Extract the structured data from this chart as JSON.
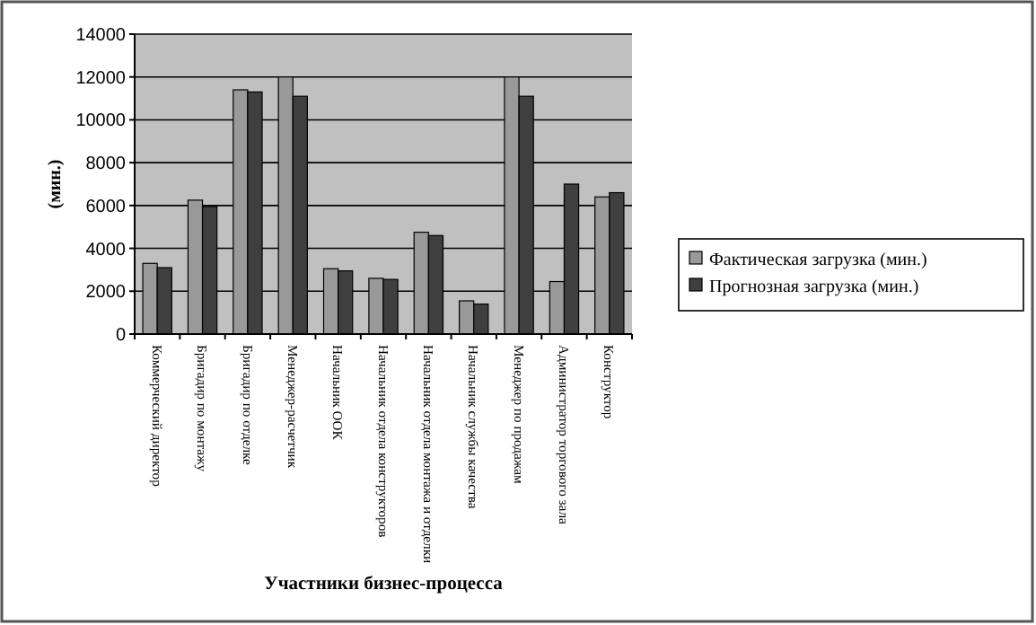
{
  "chart_data": {
    "type": "bar",
    "xlabel": "Участники бизнес-процесса",
    "ylabel": "(мин.)",
    "categories": [
      "Коммерческий директор",
      "Бригадир по монтажу",
      "Бригадир по отделке",
      "Менеджер-расчетчик",
      "Начальник ООК",
      "Начальник отдела конструкторов",
      "Начальник отдела монтажа и отделки",
      "Начальник службы качества",
      "Менеджер по продажам",
      "Администратор торгового зала",
      "Конструктор"
    ],
    "series": [
      {
        "name": "Фактическая загрузка (мин.)",
        "color": "#999999",
        "values": [
          3300,
          6250,
          11400,
          12000,
          3050,
          2600,
          4750,
          1550,
          12000,
          2450,
          6400
        ]
      },
      {
        "name": "Прогнозная загрузка (мин.)",
        "color": "#3f3f3f",
        "values": [
          3100,
          5950,
          11300,
          11100,
          2950,
          2550,
          4600,
          1400,
          11100,
          7000,
          6600
        ]
      }
    ],
    "ylim": [
      0,
      14000
    ],
    "yticks": [
      0,
      2000,
      4000,
      6000,
      8000,
      10000,
      12000,
      14000
    ],
    "grid": "y",
    "legend": "right"
  }
}
